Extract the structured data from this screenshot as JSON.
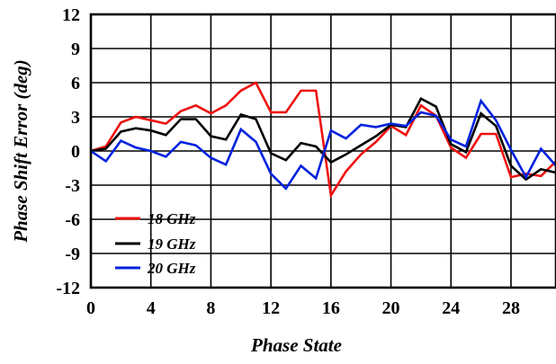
{
  "chart_data": {
    "type": "line",
    "title": "",
    "xlabel": "Phase State",
    "ylabel": "Phase Shift Error (deg)",
    "xlim": [
      0,
      31
    ],
    "ylim": [
      -12,
      12
    ],
    "x_ticks": [
      0,
      4,
      8,
      12,
      16,
      20,
      24,
      28
    ],
    "y_ticks": [
      12,
      9,
      6,
      3,
      0,
      -3,
      -6,
      -9,
      -12
    ],
    "x_tick_labels": [
      "0",
      "4",
      "8",
      "12",
      "16",
      "20",
      "24",
      "28"
    ],
    "y_tick_labels": [
      "12",
      "9",
      "6",
      "3",
      "0",
      "-3",
      "-6",
      "-9",
      "-12"
    ],
    "grid": true,
    "legend_position": "bottom-left",
    "x": [
      0,
      1,
      2,
      3,
      4,
      5,
      6,
      7,
      8,
      9,
      10,
      11,
      12,
      13,
      14,
      15,
      16,
      17,
      18,
      19,
      20,
      21,
      22,
      23,
      24,
      25,
      26,
      27,
      28,
      29,
      30,
      31
    ],
    "series": [
      {
        "name": "18 GHz",
        "color": "#ee1111",
        "values": [
          0,
          0.4,
          2.5,
          3.0,
          2.7,
          2.4,
          3.5,
          4.0,
          3.3,
          4.0,
          5.3,
          6.0,
          3.4,
          3.4,
          5.3,
          5.3,
          -3.9,
          -1.8,
          -0.3,
          0.8,
          2.2,
          1.4,
          4.0,
          3.1,
          0.3,
          -0.6,
          1.5,
          1.5,
          -2.3,
          -2.0,
          -2.2,
          -0.9
        ]
      },
      {
        "name": "19 GHz",
        "color": "#000000",
        "values": [
          0,
          0.2,
          1.7,
          2.0,
          1.8,
          1.4,
          2.8,
          2.8,
          1.3,
          1.0,
          3.2,
          2.8,
          -0.2,
          -0.8,
          0.7,
          0.4,
          -1.0,
          -0.3,
          0.5,
          1.3,
          2.3,
          2.1,
          4.6,
          3.9,
          0.6,
          -0.1,
          3.3,
          2.2,
          -1.3,
          -2.5,
          -1.6,
          -1.9
        ]
      },
      {
        "name": "20 GHz",
        "color": "#0022dd",
        "values": [
          0,
          -0.9,
          0.9,
          0.3,
          0.0,
          -0.5,
          0.8,
          0.5,
          -0.6,
          -1.2,
          1.9,
          0.8,
          -2.0,
          -3.3,
          -1.3,
          -2.4,
          1.8,
          1.1,
          2.3,
          2.1,
          2.4,
          2.2,
          3.4,
          3.1,
          1.0,
          0.4,
          4.4,
          2.7,
          0.1,
          -2.3,
          0.2,
          -1.3
        ]
      }
    ]
  }
}
